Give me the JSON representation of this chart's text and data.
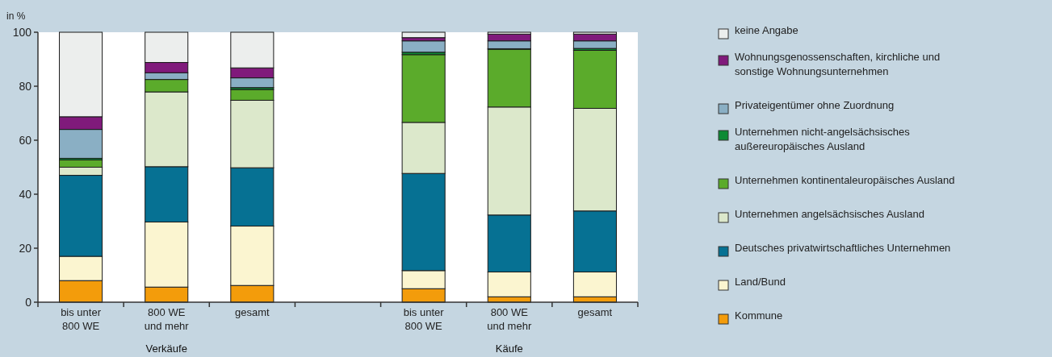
{
  "chart_data": {
    "type": "bar",
    "stacked": true,
    "ylabel": "in %",
    "categories": [
      "bis unter 800 WE",
      "800 WE und mehr",
      "gesamt",
      null,
      "bis unter 800 WE",
      "800 WE und mehr",
      "gesamt"
    ],
    "ylim": [
      0,
      100
    ],
    "yticks": [
      0,
      20,
      40,
      60,
      80,
      100
    ],
    "grid": false,
    "legend": "right",
    "annotations": [
      "Verkäufe",
      "Käufe"
    ],
    "series": [
      {
        "name": "Kommune",
        "color": "#f39c0b",
        "values": [
          8,
          5.6,
          6.2,
          null,
          5,
          2,
          2
        ]
      },
      {
        "name": "Land/Bund",
        "color": "#fbf5d0",
        "values": [
          9,
          24.1,
          22,
          null,
          6.7,
          9.2,
          9.2
        ]
      },
      {
        "name": "Deutsches privatwirtschaftliches Unternehmen",
        "color": "#067193",
        "values": [
          30,
          20.5,
          21.6,
          null,
          36,
          21.1,
          22.6
        ]
      },
      {
        "name": "Unternehmen angelsächsisches Ausland",
        "color": "#dce8cb",
        "values": [
          3,
          27.7,
          25,
          null,
          18.9,
          40,
          38
        ]
      },
      {
        "name": "Unternehmen kontinentaleuropäisches Ausland",
        "color": "#5bab2b",
        "values": [
          2.7,
          4.6,
          4,
          null,
          25.1,
          21.4,
          21.5
        ]
      },
      {
        "name": "Unternehmen nicht-angelsächsisches außereuropäisches Ausland",
        "color": "#0e8a35",
        "values": [
          0.6,
          null,
          0.7,
          null,
          0.9,
          0.2,
          0.7
        ]
      },
      {
        "name": "Privateigentümer ohne Zuordnung",
        "color": "#8aafc4",
        "values": [
          10.7,
          2.5,
          3.6,
          null,
          4.2,
          2.9,
          2.8
        ]
      },
      {
        "name": "Wohnungsgenossenschaften, kirchliche und sonstige Wohnungsunternehmen",
        "color": "#801a7b",
        "values": [
          4.7,
          3.8,
          3.7,
          null,
          1.2,
          2.5,
          2.5
        ]
      },
      {
        "name": "keine Angabe",
        "color": "#eceeed",
        "values": [
          31.3,
          11.2,
          13.2,
          null,
          2,
          0.7,
          0.7
        ]
      }
    ]
  }
}
